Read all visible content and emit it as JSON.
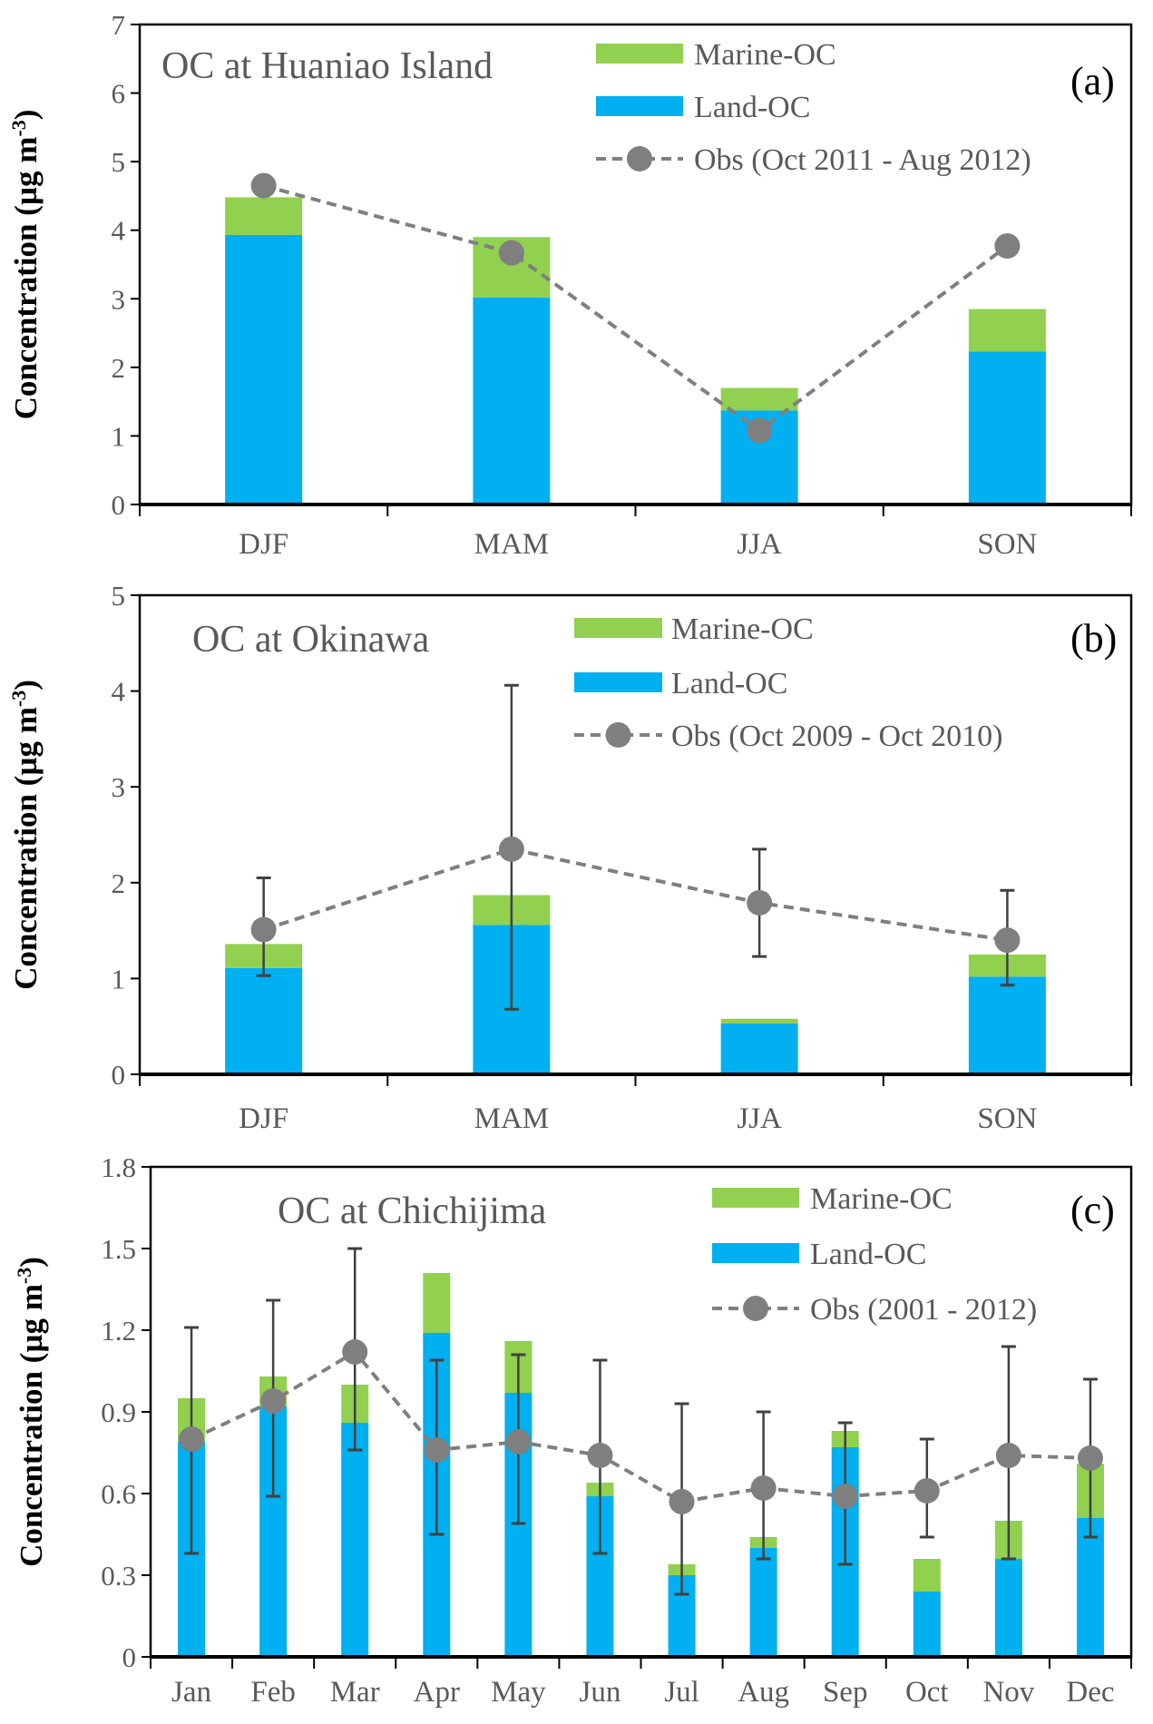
{
  "colors": {
    "land": "#00B0F0",
    "marine": "#92D050",
    "obs": "#7F7F7F",
    "errorbar": "#404040"
  },
  "chart_data": [
    {
      "type": "bar",
      "stacked": true,
      "title": "OC at Huaniao Island",
      "panel_label": "(a)",
      "ylabel": "Concentration (µg m-3)",
      "ylim": [
        0,
        7
      ],
      "yticks": [
        "0",
        "1",
        "2",
        "3",
        "4",
        "5",
        "6",
        "7"
      ],
      "categories": [
        "DJF",
        "MAM",
        "JJA",
        "SON"
      ],
      "legend": {
        "marine": "Marine-OC",
        "land": "Land-OC",
        "obs": "Obs (Oct 2011 - Aug 2012)"
      },
      "series": [
        {
          "name": "Land-OC",
          "values": [
            3.93,
            3.02,
            1.37,
            2.23
          ]
        },
        {
          "name": "Marine-OC",
          "values": [
            0.55,
            0.88,
            0.33,
            0.62
          ]
        },
        {
          "name": "Obs (Oct 2011 - Aug 2012)",
          "type": "line",
          "values": [
            4.65,
            3.67,
            1.08,
            3.77
          ]
        }
      ]
    },
    {
      "type": "bar",
      "stacked": true,
      "title": "OC at Okinawa",
      "panel_label": "(b)",
      "ylabel": "Concentration (µg m-3)",
      "ylim": [
        0,
        5
      ],
      "yticks": [
        "0",
        "1",
        "2",
        "3",
        "4",
        "5"
      ],
      "categories": [
        "DJF",
        "MAM",
        "JJA",
        "SON"
      ],
      "legend": {
        "marine": "Marine-OC",
        "land": "Land-OC",
        "obs": "Obs (Oct 2009 - Oct 2010)"
      },
      "series": [
        {
          "name": "Land-OC",
          "values": [
            1.11,
            1.56,
            0.53,
            1.02
          ]
        },
        {
          "name": "Marine-OC",
          "values": [
            0.25,
            0.31,
            0.05,
            0.23
          ]
        },
        {
          "name": "Obs (Oct 2009 - Oct 2010)",
          "type": "line",
          "values": [
            1.51,
            2.35,
            1.79,
            1.4
          ],
          "err_high": [
            2.05,
            4.06,
            2.35,
            1.92
          ],
          "err_low": [
            1.03,
            0.68,
            1.23,
            0.93
          ]
        }
      ]
    },
    {
      "type": "bar",
      "stacked": true,
      "title": "OC at Chichijima",
      "panel_label": "(c)",
      "ylabel": "Concentration (µg m-3)",
      "ylim": [
        0,
        1.8
      ],
      "yticks": [
        "0",
        "0.3",
        "0.6",
        "0.9",
        "1.2",
        "1.5",
        "1.8"
      ],
      "categories": [
        "Jan",
        "Feb",
        "Mar",
        "Apr",
        "May",
        "Jun",
        "Jul",
        "Aug",
        "Sep",
        "Oct",
        "Nov",
        "Dec"
      ],
      "legend": {
        "marine": "Marine-OC",
        "land": "Land-OC",
        "obs": "Obs (2001 - 2012)"
      },
      "series": [
        {
          "name": "Land-OC",
          "values": [
            0.79,
            0.92,
            0.86,
            1.19,
            0.97,
            0.59,
            0.3,
            0.4,
            0.77,
            0.24,
            0.36,
            0.51
          ]
        },
        {
          "name": "Marine-OC",
          "values": [
            0.16,
            0.11,
            0.14,
            0.22,
            0.19,
            0.05,
            0.04,
            0.04,
            0.06,
            0.12,
            0.14,
            0.2
          ]
        },
        {
          "name": "Obs (2001 - 2012)",
          "type": "line",
          "values": [
            0.8,
            0.94,
            1.12,
            0.76,
            0.79,
            0.74,
            0.57,
            0.62,
            0.59,
            0.61,
            0.74,
            0.73
          ],
          "err_high": [
            1.21,
            1.31,
            1.5,
            1.09,
            1.11,
            1.09,
            0.93,
            0.9,
            0.86,
            0.8,
            1.14,
            1.02
          ],
          "err_low": [
            0.38,
            0.59,
            0.76,
            0.45,
            0.49,
            0.38,
            0.23,
            0.36,
            0.34,
            0.44,
            0.36,
            0.44
          ]
        }
      ]
    }
  ]
}
